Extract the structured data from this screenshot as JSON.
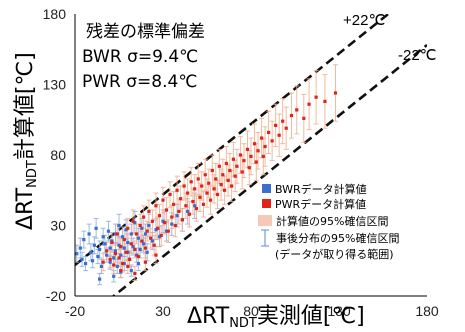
{
  "chart_data": {
    "type": "scatter",
    "title": "",
    "xlabel": {
      "main": "ΔRT",
      "sub": "NDT",
      "tail": "実測値[℃]"
    },
    "ylabel": {
      "main": "ΔRT",
      "sub": "NDT",
      "tail": "計算値[℃]"
    },
    "xlim": [
      -20,
      180
    ],
    "ylim": [
      -20,
      180
    ],
    "xticks": [
      "-20",
      "30",
      "80",
      "130",
      "180"
    ],
    "yticks": [
      "-20",
      "30",
      "80",
      "130",
      "180"
    ],
    "grid": false,
    "legend_position": "lower-right",
    "stats": {
      "title": "残差の標準偏差",
      "bwr": "BWR σ=9.4℃",
      "pwr": "PWR σ=8.4℃"
    },
    "reference_lines": [
      {
        "label": "+22℃",
        "offset": 22
      },
      {
        "label": "-22℃",
        "offset": -22
      }
    ],
    "legend": [
      {
        "label": "BWRデータ計算値",
        "kind": "marker",
        "color": "#3a6fd1"
      },
      {
        "label": "PWRデータ計算値",
        "kind": "marker",
        "color": "#e0241b"
      },
      {
        "label": "計算値の95%確信区間",
        "kind": "swatch",
        "color": "#f5c9b5"
      },
      {
        "label": "事後分布の95%確信区間",
        "kind": "errorbar",
        "color": "#7fa6da"
      },
      {
        "label": "(データが取り得る範囲)",
        "kind": "none",
        "color": "#000000"
      }
    ],
    "series": [
      {
        "name": "BWRデータ計算値",
        "color": "#3a6fd1",
        "bar_color": "#8fb0dd",
        "points": [
          [
            -19,
            10,
            6
          ],
          [
            -17,
            14,
            7
          ],
          [
            -16,
            6,
            5
          ],
          [
            -15,
            20,
            6
          ],
          [
            -14,
            3,
            5
          ],
          [
            -12,
            24,
            7
          ],
          [
            -11,
            11,
            6
          ],
          [
            -10,
            5,
            5
          ],
          [
            -9,
            16,
            6
          ],
          [
            -8,
            28,
            7
          ],
          [
            -7,
            8,
            5
          ],
          [
            -6,
            13,
            6
          ],
          [
            -5,
            1,
            5
          ],
          [
            -4,
            22,
            6
          ],
          [
            -3,
            17,
            6
          ],
          [
            -2,
            9,
            5
          ],
          [
            -1,
            26,
            7
          ],
          [
            0,
            4,
            5
          ],
          [
            0,
            14,
            6
          ],
          [
            1,
            19,
            6
          ],
          [
            2,
            7,
            5
          ],
          [
            3,
            24,
            7
          ],
          [
            3,
            12,
            6
          ],
          [
            4,
            1,
            5
          ],
          [
            5,
            30,
            8
          ],
          [
            5,
            16,
            6
          ],
          [
            6,
            9,
            5
          ],
          [
            7,
            22,
            7
          ],
          [
            8,
            3,
            5
          ],
          [
            8,
            14,
            6
          ],
          [
            9,
            27,
            7
          ],
          [
            10,
            11,
            6
          ],
          [
            10,
            18,
            6
          ],
          [
            11,
            6,
            5
          ],
          [
            12,
            24,
            7
          ],
          [
            13,
            15,
            6
          ],
          [
            14,
            32,
            8
          ],
          [
            15,
            9,
            5
          ],
          [
            16,
            21,
            7
          ],
          [
            17,
            13,
            6
          ],
          [
            18,
            28,
            7
          ],
          [
            19,
            17,
            6
          ],
          [
            20,
            24,
            7
          ],
          [
            21,
            11,
            6
          ],
          [
            22,
            30,
            8
          ],
          [
            24,
            19,
            6
          ],
          [
            26,
            27,
            7
          ],
          [
            28,
            22,
            7
          ],
          [
            30,
            33,
            8
          ],
          [
            32,
            26,
            7
          ],
          [
            35,
            31,
            8
          ],
          [
            38,
            37,
            8
          ],
          [
            41,
            34,
            8
          ],
          [
            44,
            40,
            9
          ],
          [
            48,
            44,
            9
          ],
          [
            2,
            -6,
            4
          ],
          [
            6,
            -3,
            4
          ],
          [
            -6,
            -8,
            4
          ],
          [
            12,
            -2,
            4
          ],
          [
            16,
            3,
            5
          ]
        ]
      },
      {
        "name": "PWRデータ計算値",
        "color": "#e0241b",
        "bar_color": "#f2ad8c",
        "points": [
          [
            -4,
            4,
            6
          ],
          [
            -2,
            12,
            6
          ],
          [
            0,
            6,
            6
          ],
          [
            1,
            18,
            7
          ],
          [
            2,
            2,
            6
          ],
          [
            3,
            10,
            6
          ],
          [
            4,
            24,
            7
          ],
          [
            5,
            7,
            6
          ],
          [
            6,
            15,
            6
          ],
          [
            7,
            3,
            6
          ],
          [
            8,
            20,
            7
          ],
          [
            9,
            11,
            6
          ],
          [
            10,
            28,
            7
          ],
          [
            11,
            6,
            6
          ],
          [
            12,
            17,
            7
          ],
          [
            13,
            33,
            8
          ],
          [
            14,
            13,
            6
          ],
          [
            15,
            24,
            7
          ],
          [
            16,
            8,
            6
          ],
          [
            17,
            30,
            8
          ],
          [
            18,
            19,
            7
          ],
          [
            19,
            36,
            8
          ],
          [
            20,
            14,
            7
          ],
          [
            21,
            26,
            7
          ],
          [
            22,
            40,
            8
          ],
          [
            23,
            21,
            7
          ],
          [
            24,
            33,
            8
          ],
          [
            25,
            16,
            7
          ],
          [
            26,
            44,
            9
          ],
          [
            27,
            28,
            8
          ],
          [
            28,
            37,
            8
          ],
          [
            29,
            23,
            7
          ],
          [
            30,
            48,
            9
          ],
          [
            31,
            32,
            8
          ],
          [
            32,
            41,
            9
          ],
          [
            33,
            26,
            8
          ],
          [
            34,
            52,
            9
          ],
          [
            35,
            36,
            8
          ],
          [
            36,
            45,
            9
          ],
          [
            37,
            30,
            8
          ],
          [
            38,
            55,
            10
          ],
          [
            39,
            40,
            9
          ],
          [
            40,
            49,
            9
          ],
          [
            41,
            34,
            8
          ],
          [
            42,
            58,
            10
          ],
          [
            43,
            44,
            9
          ],
          [
            44,
            53,
            10
          ],
          [
            45,
            38,
            9
          ],
          [
            46,
            61,
            10
          ],
          [
            47,
            47,
            9
          ],
          [
            48,
            56,
            10
          ],
          [
            49,
            42,
            9
          ],
          [
            50,
            63,
            11
          ],
          [
            51,
            50,
            10
          ],
          [
            52,
            58,
            10
          ],
          [
            53,
            45,
            9
          ],
          [
            54,
            66,
            11
          ],
          [
            55,
            53,
            10
          ],
          [
            56,
            60,
            10
          ],
          [
            57,
            48,
            10
          ],
          [
            58,
            69,
            11
          ],
          [
            59,
            56,
            10
          ],
          [
            60,
            63,
            11
          ],
          [
            61,
            52,
            10
          ],
          [
            62,
            72,
            12
          ],
          [
            63,
            59,
            11
          ],
          [
            64,
            66,
            11
          ],
          [
            65,
            55,
            10
          ],
          [
            66,
            74,
            12
          ],
          [
            67,
            62,
            11
          ],
          [
            68,
            69,
            12
          ],
          [
            69,
            58,
            11
          ],
          [
            70,
            77,
            12
          ],
          [
            71,
            65,
            11
          ],
          [
            72,
            72,
            12
          ],
          [
            74,
            80,
            13
          ],
          [
            75,
            68,
            12
          ],
          [
            76,
            76,
            12
          ],
          [
            78,
            84,
            13
          ],
          [
            79,
            71,
            12
          ],
          [
            80,
            79,
            13
          ],
          [
            82,
            88,
            14
          ],
          [
            83,
            75,
            13
          ],
          [
            84,
            83,
            13
          ],
          [
            86,
            92,
            14
          ],
          [
            87,
            79,
            13
          ],
          [
            88,
            86,
            14
          ],
          [
            90,
            96,
            15
          ],
          [
            92,
            90,
            14
          ],
          [
            94,
            101,
            15
          ],
          [
            96,
            94,
            15
          ],
          [
            98,
            104,
            16
          ],
          [
            100,
            99,
            15
          ],
          [
            103,
            108,
            16
          ],
          [
            106,
            112,
            17
          ],
          [
            110,
            106,
            17
          ],
          [
            113,
            116,
            18
          ],
          [
            117,
            121,
            19
          ],
          [
            122,
            118,
            19
          ],
          [
            128,
            124,
            20
          ],
          [
            6,
            -2,
            5
          ],
          [
            10,
            1,
            5
          ],
          [
            14,
            -4,
            5
          ],
          [
            20,
            4,
            6
          ],
          [
            26,
            9,
            6
          ]
        ]
      }
    ]
  }
}
